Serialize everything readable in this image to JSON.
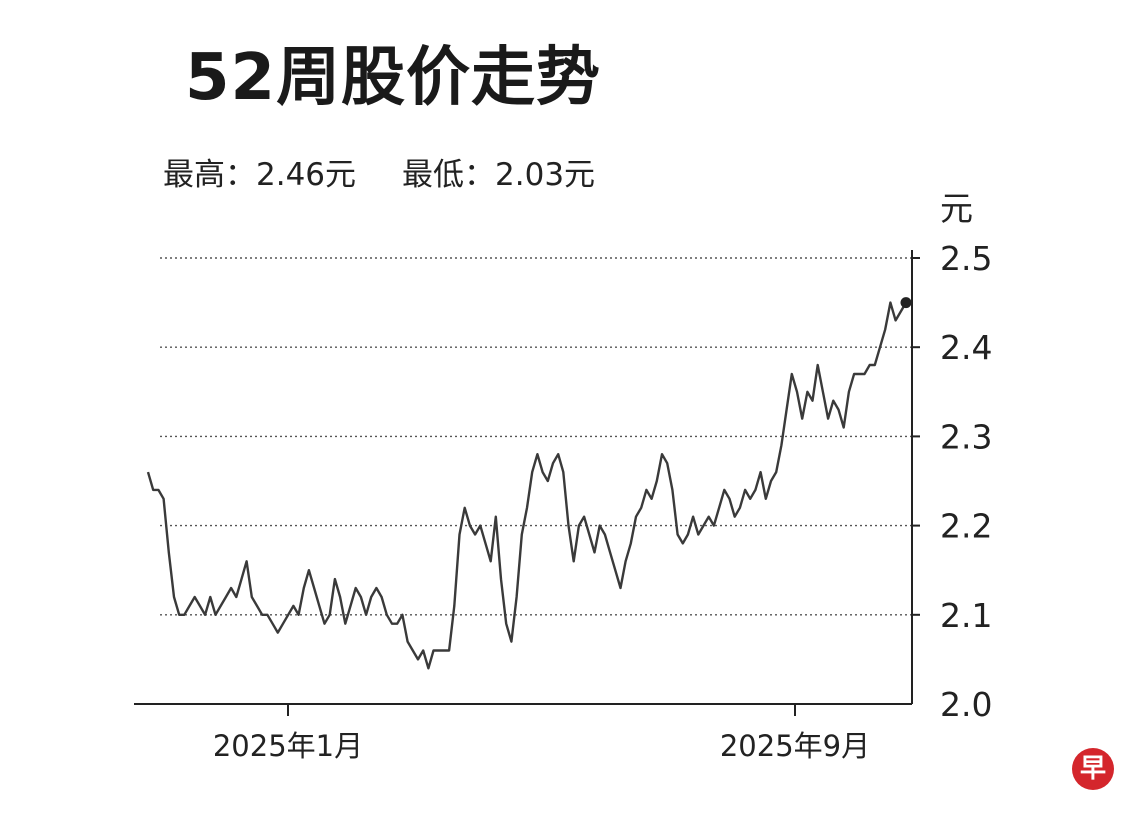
{
  "title": "52周股价走势",
  "stats": {
    "high_label": "最高：",
    "high_value": "2.46元",
    "low_label": "最低：",
    "low_value": "2.03元"
  },
  "logo_text": "早",
  "colors": {
    "line": "#3a3a3a",
    "grid": "#555555",
    "logo": "#d4262c"
  },
  "chart_data": {
    "type": "line",
    "title": "52周股价走势",
    "ylabel": "元",
    "ylim": [
      2.0,
      2.5
    ],
    "y_ticks": [
      "2.0",
      "2.1",
      "2.2",
      "2.3",
      "2.4",
      "2.5"
    ],
    "x_ticks": [
      "2025年1月",
      "2025年9月"
    ],
    "grid": "horizontal dotted",
    "series": [
      {
        "values": [
          2.26,
          2.24,
          2.24,
          2.23,
          2.17,
          2.12,
          2.1,
          2.1,
          2.11,
          2.12,
          2.11,
          2.1,
          2.12,
          2.1,
          2.11,
          2.12,
          2.13,
          2.12,
          2.14,
          2.16,
          2.12,
          2.11,
          2.1,
          2.1,
          2.09,
          2.08,
          2.09,
          2.1,
          2.11,
          2.1,
          2.13,
          2.15,
          2.13,
          2.11,
          2.09,
          2.1,
          2.14,
          2.12,
          2.09,
          2.11,
          2.13,
          2.12,
          2.1,
          2.12,
          2.13,
          2.12,
          2.1,
          2.09,
          2.09,
          2.1,
          2.07,
          2.06,
          2.05,
          2.06,
          2.04,
          2.06,
          2.06,
          2.06,
          2.06,
          2.11,
          2.19,
          2.22,
          2.2,
          2.19,
          2.2,
          2.18,
          2.16,
          2.21,
          2.14,
          2.09,
          2.07,
          2.12,
          2.19,
          2.22,
          2.26,
          2.28,
          2.26,
          2.25,
          2.27,
          2.28,
          2.26,
          2.2,
          2.16,
          2.2,
          2.21,
          2.19,
          2.17,
          2.2,
          2.19,
          2.17,
          2.15,
          2.13,
          2.16,
          2.18,
          2.21,
          2.22,
          2.24,
          2.23,
          2.25,
          2.28,
          2.27,
          2.24,
          2.19,
          2.18,
          2.19,
          2.21,
          2.19,
          2.2,
          2.21,
          2.2,
          2.22,
          2.24,
          2.23,
          2.21,
          2.22,
          2.24,
          2.23,
          2.24,
          2.26,
          2.23,
          2.25,
          2.26,
          2.29,
          2.33,
          2.37,
          2.35,
          2.32,
          2.35,
          2.34,
          2.38,
          2.35,
          2.32,
          2.34,
          2.33,
          2.31,
          2.35,
          2.37,
          2.37,
          2.37,
          2.38,
          2.38,
          2.4,
          2.42,
          2.45,
          2.43,
          2.44,
          2.45
        ]
      }
    ]
  }
}
